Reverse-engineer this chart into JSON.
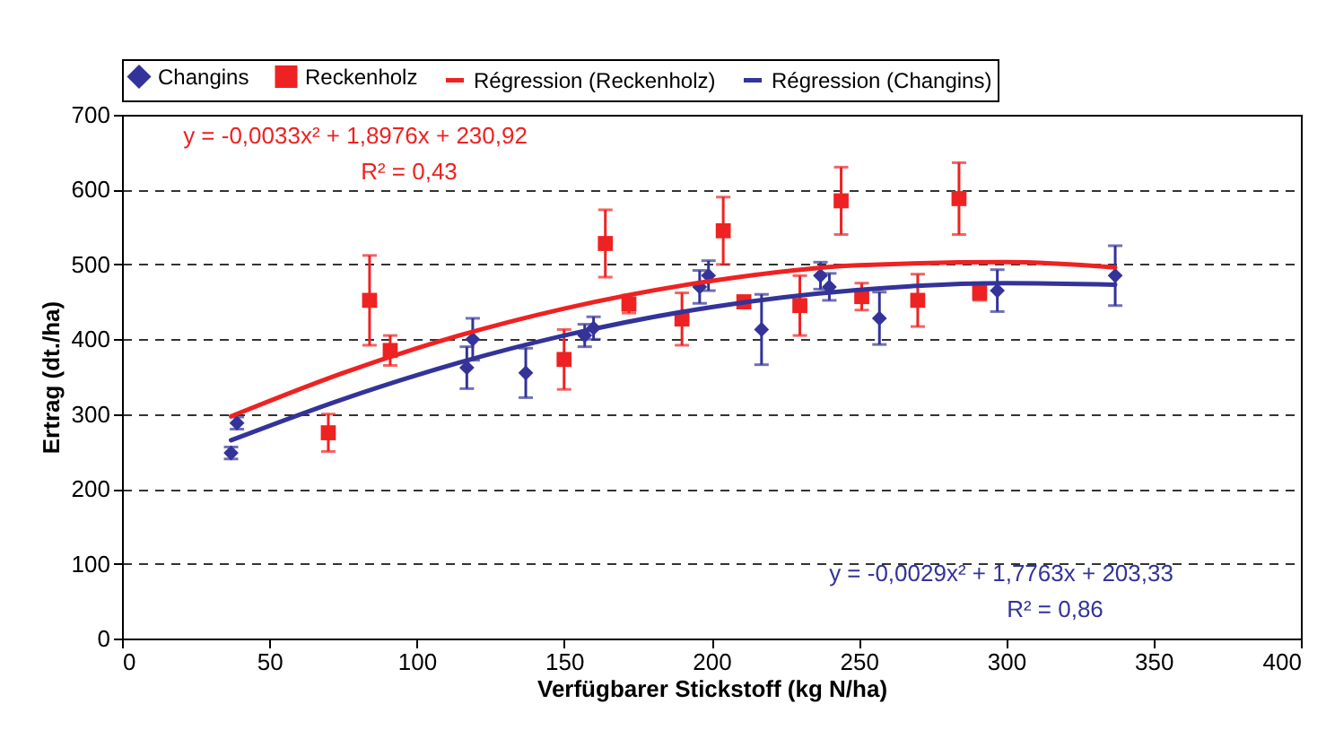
{
  "chart_data": {
    "type": "scatter",
    "xlabel": "Verfügbarer Stickstoff (kg N/ha)",
    "ylabel": "Ertrag (dt./ha)",
    "xlim": [
      0,
      400
    ],
    "xticks": [
      0,
      50,
      100,
      150,
      200,
      250,
      300,
      350,
      400
    ],
    "ylim": [
      0,
      700
    ],
    "yticks": [
      0,
      100,
      200,
      300,
      400,
      500,
      600,
      700
    ],
    "grid": "y",
    "legend": "top",
    "series": [
      {
        "name": "Changins",
        "color": "#333399",
        "marker": "diamond",
        "x": [
          37,
          39,
          117,
          119,
          137,
          157,
          160,
          196,
          199,
          217,
          237,
          240,
          257,
          297,
          337
        ],
        "values": [
          248,
          288,
          362,
          400,
          355,
          405,
          415,
          470,
          485,
          413,
          485,
          470,
          428,
          465,
          485
        ],
        "errors": [
          8,
          8,
          28,
          28,
          33,
          15,
          15,
          22,
          20,
          47,
          18,
          18,
          35,
          28,
          40
        ]
      },
      {
        "name": "Reckenholz",
        "color": "#ee2222",
        "marker": "square",
        "x": [
          70,
          84,
          91,
          150,
          164,
          172,
          190,
          204,
          211,
          230,
          244,
          251,
          270,
          284,
          291
        ],
        "values": [
          275,
          452,
          385,
          373,
          528,
          447,
          427,
          545,
          450,
          445,
          585,
          457,
          452,
          588,
          462
        ],
        "errors": [
          25,
          60,
          20,
          40,
          45,
          12,
          35,
          45,
          8,
          40,
          45,
          18,
          35,
          48,
          10
        ]
      },
      {
        "name": "Régression (Reckenholz)",
        "type": "line",
        "color": "#ee2222",
        "marker": "none",
        "x": [
          37,
          75,
          100,
          150,
          200,
          250,
          300,
          337
        ],
        "values": [
          297,
          355,
          388,
          441,
          478,
          499,
          503,
          496
        ]
      },
      {
        "name": "Régression (Changins)",
        "type": "line",
        "color": "#333399",
        "marker": "none",
        "x": [
          37,
          75,
          100,
          150,
          200,
          250,
          300,
          337
        ],
        "values": [
          265,
          320,
          352,
          405,
          443,
          466,
          475,
          473
        ]
      }
    ],
    "annotations": [
      "y = -0,0033x² + 1,8976x + 230,92",
      "R² = 0,43",
      "y = -0,0029x² + 1,7763x + 203,33",
      "R² = 0,86"
    ]
  }
}
